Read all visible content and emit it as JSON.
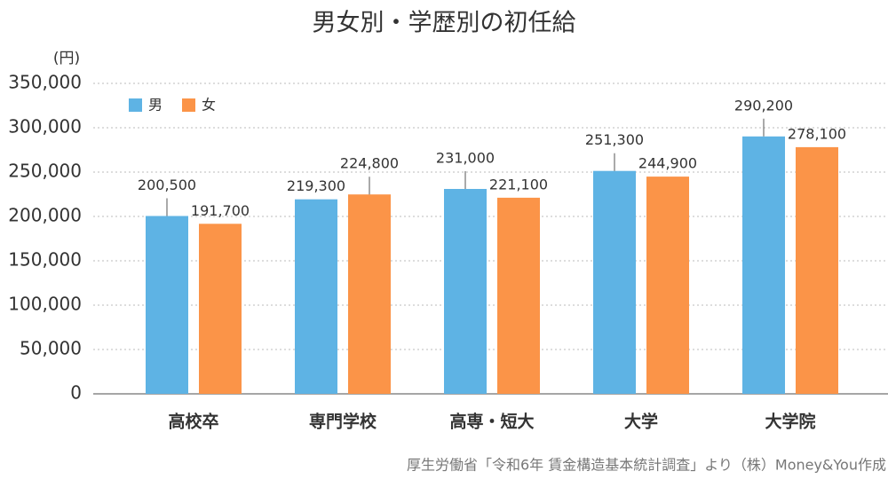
{
  "chart_data": {
    "type": "bar",
    "title": "男女別・学歴別の初任給",
    "y_unit": "(円)",
    "source": "厚生労働省「令和6年 賃金構造基本統計調査」より（株）Money&You作成",
    "categories": [
      "高校卒",
      "専門学校",
      "高専・短大",
      "大学",
      "大学院"
    ],
    "series": [
      {
        "name": "男",
        "color": "#5eb3e4",
        "values": [
          200500,
          219300,
          231000,
          251300,
          290200
        ],
        "value_labels": [
          "200,500",
          "219,300",
          "231,000",
          "251,300",
          "290,200"
        ]
      },
      {
        "name": "女",
        "color": "#fb9448",
        "values": [
          191700,
          224800,
          221100,
          244900,
          278100
        ],
        "value_labels": [
          "191,700",
          "224,800",
          "221,100",
          "244,900",
          "278,100"
        ]
      }
    ],
    "ylim": [
      0,
      350000
    ],
    "yticks": [
      0,
      {
        "value": 50000,
        "label": "50,000"
      },
      {
        "value": 100000,
        "label": "100,000"
      },
      {
        "value": 150000,
        "label": "150,000"
      },
      {
        "value": 200000,
        "label": "200,000"
      },
      {
        "value": 250000,
        "label": "250,000"
      },
      {
        "value": 300000,
        "label": "300,000"
      },
      {
        "value": 350000,
        "label": "350,000"
      }
    ],
    "grid": true,
    "legend": "top-left"
  }
}
